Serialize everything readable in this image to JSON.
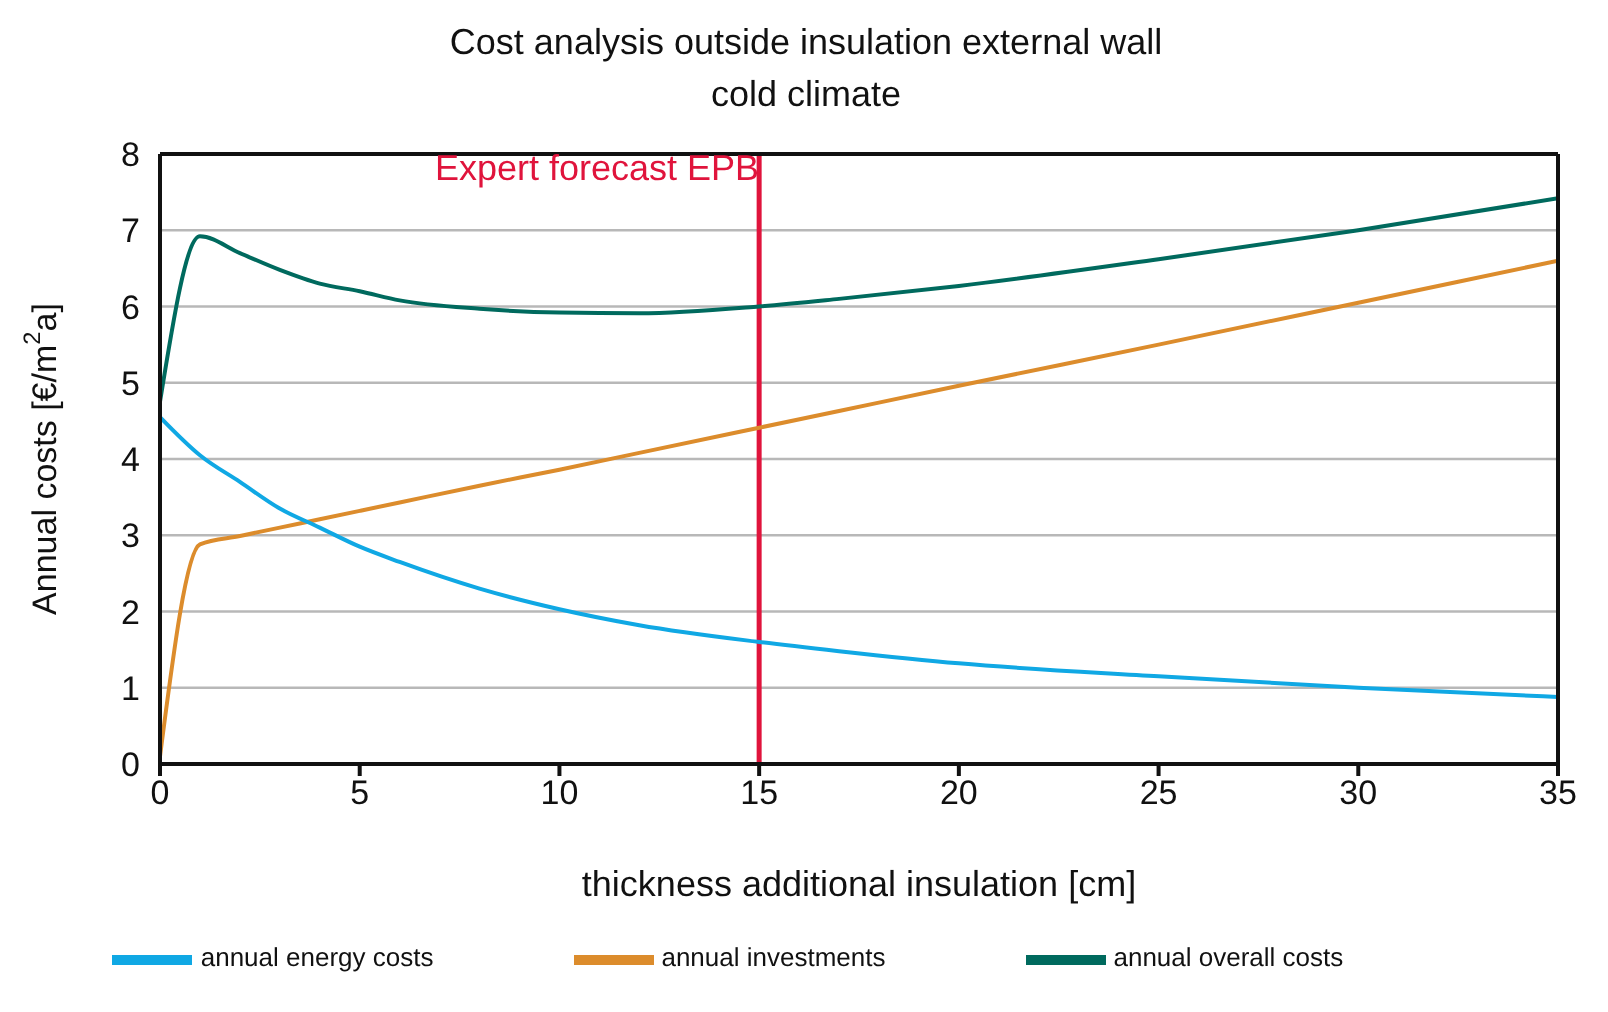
{
  "chart_data": {
    "type": "line",
    "title": "Cost analysis outside insulation external wall",
    "subtitle": "cold climate",
    "xlabel": "thickness additional insulation [cm]",
    "ylabel": "Annual costs [€/m$^{2}$a]",
    "x": [
      0,
      1,
      2,
      3,
      4,
      5,
      6,
      8,
      10,
      12,
      15,
      17,
      20,
      25,
      30,
      35
    ],
    "series": [
      {
        "name": "annual overall costs",
        "color": "#006a5e",
        "values": [
          4.75,
          6.92,
          6.7,
          6.48,
          6.3,
          6.2,
          6.08,
          5.97,
          5.92,
          5.91,
          6.0,
          6.1,
          6.27,
          6.62,
          7.0,
          7.42
        ]
      },
      {
        "name": "annual investments",
        "color": "#dc8c2c",
        "values": [
          0.1,
          2.88,
          2.99,
          3.1,
          3.21,
          3.32,
          3.43,
          3.65,
          3.86,
          4.08,
          4.41,
          4.63,
          4.96,
          5.5,
          6.05,
          6.6
        ]
      },
      {
        "name": "annual energy costs",
        "color": "#10a8e4",
        "values": [
          4.55,
          4.05,
          3.7,
          3.35,
          3.1,
          2.85,
          2.65,
          2.3,
          2.03,
          1.82,
          1.6,
          1.48,
          1.32,
          1.15,
          1.0,
          0.88
        ]
      }
    ],
    "xlim": [
      0,
      35
    ],
    "xticks": [
      0,
      5,
      10,
      15,
      20,
      25,
      30,
      35
    ],
    "ylim": [
      0,
      8
    ],
    "yticks": [
      0,
      1,
      2,
      3,
      4,
      5,
      6,
      7,
      8
    ],
    "ref_lines": [
      {
        "axis": "x",
        "value": 15,
        "label": "Expert forecast EPB",
        "color": "#e0143c"
      }
    ],
    "grid": "y",
    "legend": "bottom",
    "marker": "none",
    "line_style": "solid"
  }
}
